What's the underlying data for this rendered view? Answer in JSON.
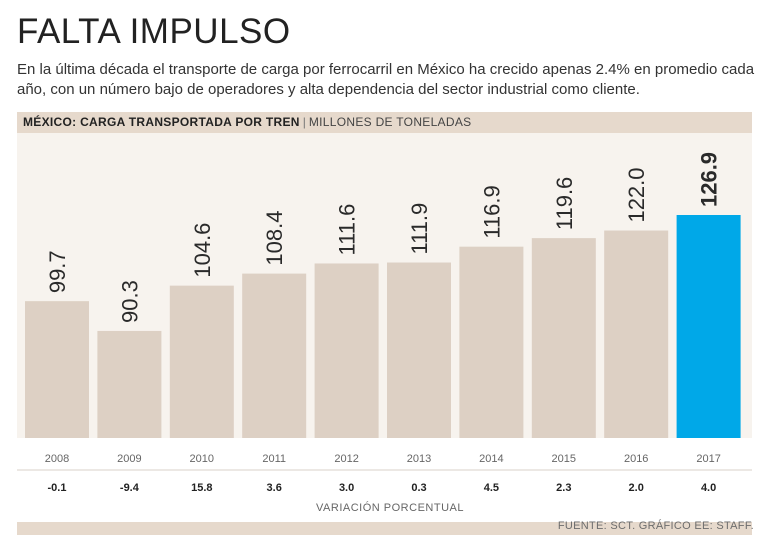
{
  "title": "FALTA IMPULSO",
  "subtitle": "En la última década el transporte de carga por ferrocarril en México ha crecido apenas 2.4% en promedio cada año, con un número bajo de operadores y alta dependencia del sector industrial como cliente.",
  "header": {
    "title": "MÉXICO: CARGA TRANSPORTADA POR TREN",
    "separator": "|",
    "unit": "MILLONES DE TONELADAS"
  },
  "footer": {
    "variation_label": "VARIACIÓN PORCENTUAL",
    "source": "FUENTE: SCT. GRÁFICO EE: STAFF."
  },
  "colors": {
    "bar": "#ddd0c4",
    "highlight": "#00a8e8",
    "panel": "#f7f3ee",
    "band": "#e6d9cc"
  },
  "chart_data": {
    "type": "bar",
    "title": "MÉXICO: CARGA TRANSPORTADA POR TREN",
    "ylabel": "MILLONES DE TONELADAS",
    "xlabel": "",
    "ylim": [
      0,
      130
    ],
    "categories": [
      "2008",
      "2009",
      "2010",
      "2011",
      "2012",
      "2013",
      "2014",
      "2015",
      "2016",
      "2017"
    ],
    "values": [
      99.7,
      90.3,
      104.6,
      108.4,
      111.6,
      111.9,
      116.9,
      119.6,
      122.0,
      126.9
    ],
    "value_labels": [
      "99.7",
      "90.3",
      "104.6",
      "108.4",
      "111.6",
      "111.9",
      "116.9",
      "119.6",
      "122.0",
      "126.9"
    ],
    "highlight_index": 9,
    "variation": [
      "-0.1",
      "-9.4",
      "15.8",
      "3.6",
      "3.0",
      "0.3",
      "4.5",
      "2.3",
      "2.0",
      "4.0"
    ],
    "variation_title": "VARIACIÓN PORCENTUAL"
  }
}
